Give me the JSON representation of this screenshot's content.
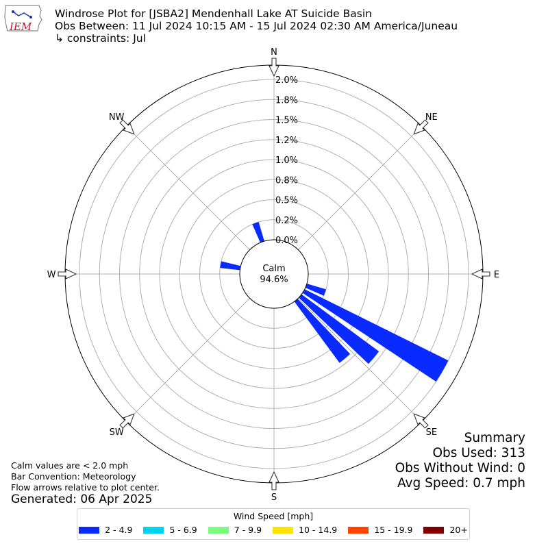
{
  "header": {
    "title": "Windrose Plot for [JSBA2] Mendenhall Lake  AT Suicide Basin",
    "obs_between": "Obs Between: 11 Jul 2024 10:15 AM - 15 Jul 2024 02:30 AM America/Juneau",
    "constraints": "↳ constraints: Jul"
  },
  "logo": {
    "text": "IEM",
    "color": "#c8102e",
    "icon": "iowa-map-icon"
  },
  "chart_data": {
    "type": "windrose",
    "directions": [
      "N",
      "NE",
      "E",
      "SE",
      "S",
      "SW",
      "W",
      "NW"
    ],
    "radial_ticks": [
      "0.0%",
      "0.2%",
      "0.5%",
      "0.8%",
      "1.0%",
      "1.2%",
      "1.5%",
      "1.8%",
      "2.0%"
    ],
    "radial_max": 2.0,
    "calm": {
      "label": "Calm",
      "value": "94.6%"
    },
    "bars": [
      {
        "direction_deg": 340,
        "series": "2 - 4.9",
        "value": 0.25
      },
      {
        "direction_deg": 280,
        "series": "2 - 4.9",
        "value": 0.25
      },
      {
        "direction_deg": 110,
        "series": "2 - 4.9",
        "value": 0.25
      },
      {
        "direction_deg": 120,
        "series": "2 - 4.9",
        "value": 2.0
      },
      {
        "direction_deg": 130,
        "series": "2 - 4.9",
        "value": 1.2
      },
      {
        "direction_deg": 140,
        "series": "2 - 4.9",
        "value": 0.95
      }
    ],
    "legend": {
      "title": "Wind Speed [mph]",
      "placement": "bottom-center",
      "items": [
        {
          "label": "2 - 4.9",
          "color": "#0a2bff"
        },
        {
          "label": "5 - 6.9",
          "color": "#00d2f0"
        },
        {
          "label": "7 - 9.9",
          "color": "#7cfc7c"
        },
        {
          "label": "10 - 14.9",
          "color": "#ffe600"
        },
        {
          "label": "15 - 19.9",
          "color": "#ff4500"
        },
        {
          "label": "20+",
          "color": "#800000"
        }
      ]
    }
  },
  "notes": [
    "Calm values are < 2.0 mph",
    "Bar Convention: Meteorology",
    "Flow arrows relative to plot center."
  ],
  "generated": "Generated: 06 Apr 2025",
  "summary": {
    "title": "Summary",
    "obs_used": "Obs Used: 313",
    "obs_without_wind": "Obs Without Wind: 0",
    "avg_speed": "Avg Speed: 0.7 mph"
  }
}
